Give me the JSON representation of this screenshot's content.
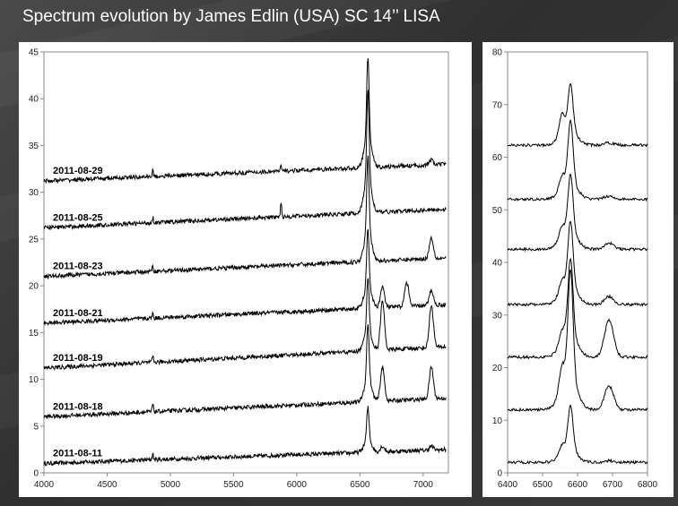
{
  "title": "Spectrum evolution by James Edlin (USA) SC 14’’ LISA",
  "colors": {
    "line": "#000000",
    "background": "#3a3a3a",
    "panel": "#ffffff"
  },
  "chart_data": [
    {
      "type": "line",
      "xlim": [
        4000,
        7200
      ],
      "ylim": [
        0,
        45
      ],
      "xticks": [
        4000,
        4500,
        5000,
        5500,
        6000,
        6500,
        7000
      ],
      "yticks": [
        0,
        5,
        10,
        15,
        20,
        25,
        30,
        35,
        40,
        45
      ],
      "grid": false,
      "series": [
        {
          "name": "2011-08-11",
          "baseline_start": 1.0,
          "baseline_end": 2.5,
          "halpha_peak": 7.0,
          "other_peaks": [
            [
              4861,
              0.6
            ],
            [
              5876,
              0.3
            ],
            [
              6678,
              0.6
            ],
            [
              7065,
              0.4
            ]
          ]
        },
        {
          "name": "2011-08-18",
          "baseline_start": 6.0,
          "baseline_end": 8.0,
          "halpha_peak": 16.0,
          "other_peaks": [
            [
              4861,
              0.8
            ],
            [
              6678,
              3.6
            ],
            [
              7065,
              3.4
            ]
          ]
        },
        {
          "name": "2011-08-19",
          "baseline_start": 11.2,
          "baseline_end": 13.5,
          "halpha_peak": 21.0,
          "other_peaks": [
            [
              4861,
              0.6
            ],
            [
              6678,
              5.2
            ],
            [
              7065,
              4.5
            ]
          ]
        },
        {
          "name": "2011-08-21",
          "baseline_start": 16.0,
          "baseline_end": 18.0,
          "halpha_peak": 26.0,
          "other_peaks": [
            [
              4861,
              0.5
            ],
            [
              6678,
              2.2
            ],
            [
              6870,
              2.6
            ],
            [
              7065,
              1.6
            ]
          ]
        },
        {
          "name": "2011-08-23",
          "baseline_start": 21.0,
          "baseline_end": 23.0,
          "halpha_peak": 34.0,
          "other_peaks": [
            [
              4861,
              0.5
            ],
            [
              7065,
              2.2
            ]
          ]
        },
        {
          "name": "2011-08-25",
          "baseline_start": 26.2,
          "baseline_end": 28.2,
          "halpha_peak": 41.0,
          "other_peaks": [
            [
              4861,
              0.6
            ],
            [
              5876,
              1.6
            ]
          ]
        },
        {
          "name": "2011-08-29",
          "baseline_start": 31.2,
          "baseline_end": 33.0,
          "halpha_peak": 44.5,
          "other_peaks": [
            [
              4861,
              0.6
            ],
            [
              5876,
              0.5
            ],
            [
              7065,
              0.5
            ]
          ]
        }
      ]
    },
    {
      "type": "line",
      "xlim": [
        6400,
        6800
      ],
      "ylim": [
        0,
        80
      ],
      "xticks": [
        6400,
        6500,
        6600,
        6700,
        6800
      ],
      "yticks": [
        0,
        10,
        20,
        30,
        40,
        50,
        60,
        70,
        80
      ],
      "grid": false,
      "series": [
        {
          "baseline": 2.0,
          "peak": 13.0,
          "shoulder": 1.5,
          "he": 0.3
        },
        {
          "baseline": 12.0,
          "peak": 39.0,
          "shoulder": 4.0,
          "he": 4.5
        },
        {
          "baseline": 22.0,
          "peak": 41.0,
          "shoulder": 2.0,
          "he": 7.0
        },
        {
          "baseline": 32.0,
          "peak": 48.0,
          "shoulder": 2.0,
          "he": 1.5
        },
        {
          "baseline": 42.5,
          "peak": 57.0,
          "shoulder": 2.0,
          "he": 1.2
        },
        {
          "baseline": 52.0,
          "peak": 67.0,
          "shoulder": 2.0,
          "he": 0.6
        },
        {
          "baseline": 62.3,
          "peak": 74.0,
          "shoulder": 4.0,
          "he": 0.4
        }
      ]
    }
  ]
}
